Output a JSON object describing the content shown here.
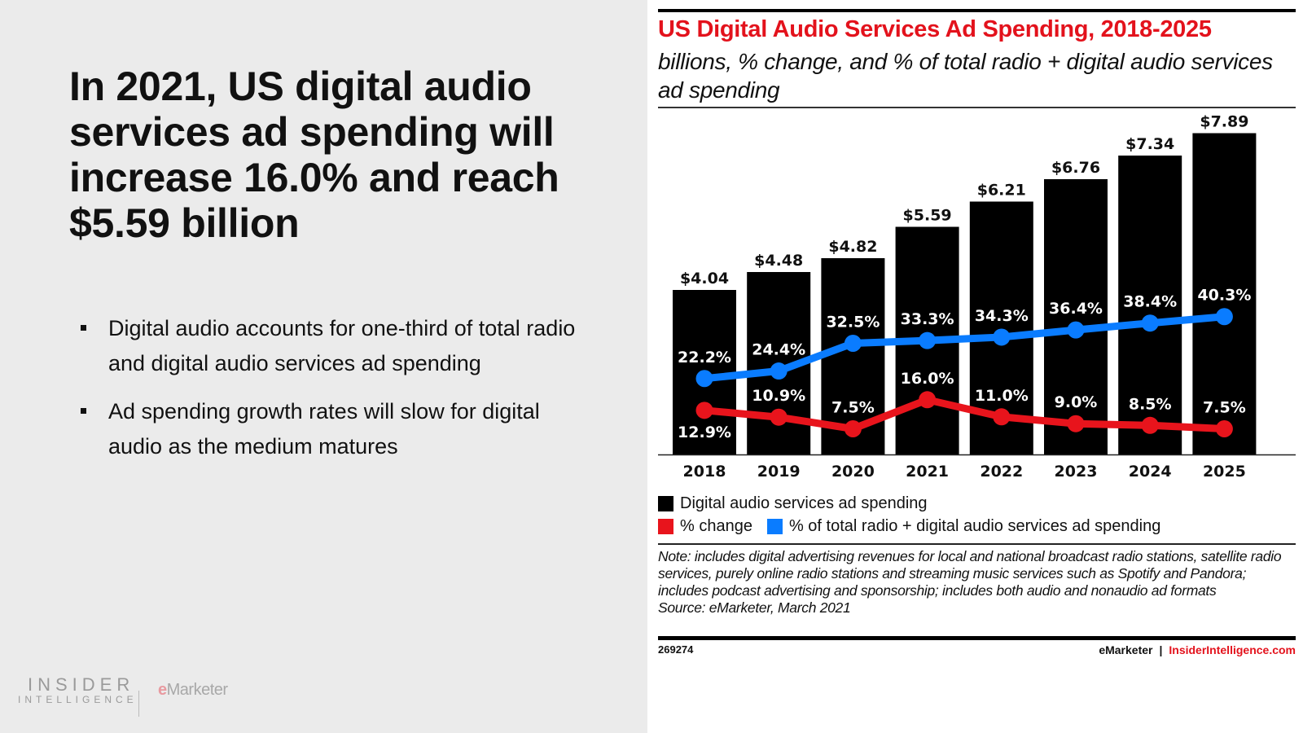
{
  "slide": {
    "headline": "In 2021, US digital audio services ad spending will increase 16.0% and reach $5.59 billion",
    "bullets": [
      "Digital audio accounts for one-third of total radio and digital audio services ad spending",
      "Ad spending growth rates will slow for digital audio as the medium matures"
    ],
    "logo": {
      "line1": "INSIDER",
      "line2": "INTELLIGENCE",
      "partner_e": "e",
      "partner_rest": "Marketer"
    }
  },
  "chart_panel": {
    "note": "Note: includes digital advertising revenues for local and national broadcast radio stations, satellite radio services, purely online radio stations and streaming music services such as Spotify and Pandora; includes podcast advertising and sponsorship; includes both audio and nonaudio ad formats",
    "source": "Source: eMarketer, March 2021",
    "chart_id": "269274",
    "footer_brand": "eMarketer",
    "footer_separator": "|",
    "footer_site": "InsiderIntelligence.com"
  },
  "colors": {
    "title_red": "#e3121c",
    "bar": "#000000",
    "pct_change": "#e8141c",
    "pct_total": "#0a7cff"
  },
  "chart_data": {
    "type": "bar",
    "title": "US Digital Audio Services Ad Spending, 2018-2025",
    "subtitle": "billions, % change, and % of total radio + digital audio services ad spending",
    "categories": [
      "2018",
      "2019",
      "2020",
      "2021",
      "2022",
      "2023",
      "2024",
      "2025"
    ],
    "xlabel": "",
    "ylabel": "",
    "ylim": [
      0,
      8
    ],
    "grid": false,
    "legend_position": "bottom-left",
    "series": [
      {
        "name": "Digital audio services ad spending",
        "type": "bar",
        "unit": "billions",
        "values": [
          4.04,
          4.48,
          4.82,
          5.59,
          6.21,
          6.76,
          7.34,
          7.89
        ],
        "labels": [
          "$4.04",
          "$4.48",
          "$4.82",
          "$5.59",
          "$6.21",
          "$6.76",
          "$7.34",
          "$7.89"
        ]
      },
      {
        "name": "% change",
        "type": "line",
        "unit": "%",
        "values": [
          12.9,
          10.9,
          7.5,
          16.0,
          11.0,
          9.0,
          8.5,
          7.5
        ],
        "labels": [
          "12.9%",
          "10.9%",
          "7.5%",
          "16.0%",
          "11.0%",
          "9.0%",
          "8.5%",
          "7.5%"
        ]
      },
      {
        "name": "% of total radio + digital audio services ad spending",
        "type": "line",
        "unit": "%",
        "values": [
          22.2,
          24.4,
          32.5,
          33.3,
          34.3,
          36.4,
          38.4,
          40.3
        ],
        "labels": [
          "22.2%",
          "24.4%",
          "32.5%",
          "33.3%",
          "34.3%",
          "36.4%",
          "38.4%",
          "40.3%"
        ]
      }
    ]
  }
}
